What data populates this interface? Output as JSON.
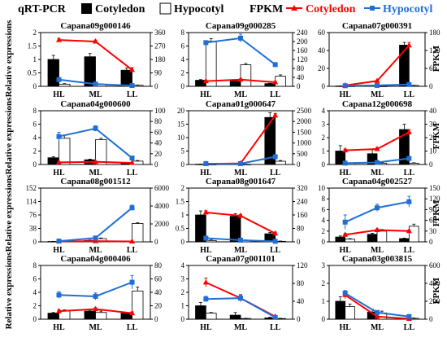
{
  "legend": {
    "qrt_label": "qRT-PCR",
    "cotyledon_label": "Cotyledon",
    "hypocotyl_label": "Hypocotyl",
    "fpkm_label": "FPKM",
    "bar_colors": {
      "cotyledon": "#000000",
      "hypocotyl": "#ffffff"
    },
    "line_colors": {
      "cotyledon": "#ff0000",
      "hypocotyl": "#1f6fd6"
    }
  },
  "left_axis_label": "Relative expressions",
  "right_axis_label": "FPKM",
  "chart_data": [
    {
      "type": "bar+line",
      "title": "Capana09g000146",
      "categories": [
        "HL",
        "ML",
        "LL"
      ],
      "left_ticks": [
        "0",
        "0.5",
        "1",
        "1.5",
        "2"
      ],
      "ylim_left": [
        0,
        2
      ],
      "right_ticks": [
        "0",
        "90",
        "180",
        "270",
        "360"
      ],
      "ylim_right": [
        0,
        360
      ],
      "bars": [
        {
          "name": "Cotyledon",
          "values": [
            1.0,
            1.1,
            0.6
          ],
          "errors": [
            0.15,
            0.12,
            0.08
          ]
        },
        {
          "name": "Hypocotyl",
          "values": [
            0.08,
            0.06,
            0.04
          ],
          "errors": [
            0.02,
            0.02,
            0.01
          ]
        }
      ],
      "lines": [
        {
          "name": "Cotyledon",
          "values": [
            310,
            300,
            110
          ],
          "errors": [
            10,
            10,
            15
          ]
        },
        {
          "name": "Hypocotyl",
          "values": [
            45,
            15,
            5
          ],
          "errors": [
            5,
            4,
            2
          ]
        }
      ]
    },
    {
      "type": "bar+line",
      "title": "Capana09g000285",
      "categories": [
        "HL",
        "ML",
        "LL"
      ],
      "left_ticks": [
        "0",
        "2",
        "4",
        "6",
        "8"
      ],
      "ylim_left": [
        0,
        8
      ],
      "right_ticks": [
        "0",
        "40",
        "80",
        "120",
        "160",
        "200",
        "240"
      ],
      "ylim_right": [
        0,
        240
      ],
      "bars": [
        {
          "name": "Cotyledon",
          "values": [
            0.9,
            0.8,
            0.4
          ],
          "errors": [
            0.1,
            0.1,
            0.05
          ]
        },
        {
          "name": "Hypocotyl",
          "values": [
            6.7,
            3.2,
            1.5
          ],
          "errors": [
            0.4,
            0.2,
            0.2
          ]
        }
      ],
      "lines": [
        {
          "name": "Cotyledon",
          "values": [
            23,
            30,
            18
          ],
          "errors": [
            3,
            3,
            3
          ]
        },
        {
          "name": "Hypocotyl",
          "values": [
            195,
            215,
            97
          ],
          "errors": [
            8,
            18,
            8
          ]
        }
      ]
    },
    {
      "type": "bar+line",
      "title": "Capana07g000391",
      "categories": [
        "HL",
        "ML",
        "LL"
      ],
      "left_ticks": [
        "0",
        "20",
        "40",
        "60"
      ],
      "ylim_left": [
        0,
        60
      ],
      "right_ticks": [
        "0",
        "60",
        "120",
        "180"
      ],
      "ylim_right": [
        0,
        180
      ],
      "bars": [
        {
          "name": "Cotyledon",
          "values": [
            0.3,
            0.8,
            46
          ],
          "errors": [
            0.1,
            0.2,
            3
          ]
        },
        {
          "name": "Hypocotyl",
          "values": [
            0.2,
            0.2,
            1.0
          ],
          "errors": [
            0.05,
            0.05,
            0.2
          ]
        }
      ],
      "lines": [
        {
          "name": "Cotyledon",
          "values": [
            3,
            18,
            137
          ],
          "errors": [
            1,
            2,
            10
          ]
        },
        {
          "name": "Hypocotyl",
          "values": [
            2,
            3,
            6
          ],
          "errors": [
            1,
            1,
            1
          ]
        }
      ]
    },
    {
      "type": "bar+line",
      "title": "Capana04g000600",
      "categories": [
        "HL",
        "ML",
        "LL"
      ],
      "left_ticks": [
        "0",
        "2",
        "4",
        "6",
        "8"
      ],
      "ylim_left": [
        0,
        8
      ],
      "right_ticks": [
        "0",
        "20",
        "40",
        "60",
        "80",
        "100"
      ],
      "ylim_right": [
        0,
        100
      ],
      "bars": [
        {
          "name": "Cotyledon",
          "values": [
            1.0,
            0.7,
            0.2
          ],
          "errors": [
            0.15,
            0.1,
            0.05
          ]
        },
        {
          "name": "Hypocotyl",
          "values": [
            3.9,
            3.7,
            0.5
          ],
          "errors": [
            0.5,
            0.2,
            0.1
          ]
        }
      ],
      "lines": [
        {
          "name": "Cotyledon",
          "values": [
            4,
            5,
            3
          ],
          "errors": [
            1,
            1,
            1
          ]
        },
        {
          "name": "Hypocotyl",
          "values": [
            52,
            67,
            12
          ],
          "errors": [
            8,
            5,
            2
          ]
        }
      ]
    },
    {
      "type": "bar+line",
      "title": "Capana01g000647",
      "categories": [
        "HL",
        "ML",
        "LL"
      ],
      "left_ticks": [
        "0",
        "5",
        "10",
        "15",
        "20"
      ],
      "ylim_left": [
        0,
        20
      ],
      "right_ticks": [
        "0",
        "500",
        "1000",
        "1500",
        "2000",
        "2500"
      ],
      "ylim_right": [
        0,
        2500
      ],
      "bars": [
        {
          "name": "Cotyledon",
          "values": [
            0.1,
            0.15,
            17.5
          ],
          "errors": [
            0.05,
            0.05,
            1.8
          ]
        },
        {
          "name": "Hypocotyl",
          "values": [
            0.05,
            0.05,
            1.2
          ],
          "errors": [
            0.02,
            0.02,
            0.3
          ]
        }
      ],
      "lines": [
        {
          "name": "Cotyledon",
          "values": [
            30,
            50,
            2280
          ],
          "errors": [
            5,
            10,
            90
          ]
        },
        {
          "name": "Hypocotyl",
          "values": [
            40,
            40,
            360
          ],
          "errors": [
            5,
            5,
            40
          ]
        }
      ]
    },
    {
      "type": "bar+line",
      "title": "Capana12g000698",
      "categories": [
        "HL",
        "ML",
        "LL"
      ],
      "left_ticks": [
        "0",
        "1",
        "2",
        "3",
        "4"
      ],
      "ylim_left": [
        0,
        4
      ],
      "right_ticks": [
        "0",
        "10",
        "20",
        "30",
        "40"
      ],
      "ylim_right": [
        0,
        40
      ],
      "bars": [
        {
          "name": "Cotyledon",
          "values": [
            1.0,
            0.8,
            2.6
          ],
          "errors": [
            0.4,
            0.3,
            0.4
          ]
        },
        {
          "name": "Hypocotyl",
          "values": [
            0.1,
            0.1,
            0.1
          ],
          "errors": [
            0.03,
            0.03,
            0.03
          ]
        }
      ],
      "lines": [
        {
          "name": "Cotyledon",
          "values": [
            10.5,
            11.5,
            24
          ],
          "errors": [
            1,
            1,
            2
          ]
        },
        {
          "name": "Hypocotyl",
          "values": [
            1,
            1.5,
            4.5
          ],
          "errors": [
            0.5,
            0.5,
            1
          ]
        }
      ]
    },
    {
      "type": "bar+line",
      "title": "Capana08g001512",
      "categories": [
        "HL",
        "ML",
        "LL"
      ],
      "left_ticks": [
        "0",
        "38",
        "76",
        "114",
        "152"
      ],
      "ylim_left": [
        0,
        152
      ],
      "right_ticks": [
        "0",
        "2000",
        "4000",
        "6000"
      ],
      "ylim_right": [
        0,
        6000
      ],
      "bars": [
        {
          "name": "Cotyledon",
          "values": [
            1,
            4,
            1
          ],
          "errors": [
            0.5,
            1,
            0.5
          ]
        },
        {
          "name": "Hypocotyl",
          "values": [
            1,
            9,
            52
          ],
          "errors": [
            0.5,
            2,
            2
          ]
        }
      ],
      "lines": [
        {
          "name": "Cotyledon",
          "values": [
            40,
            80,
            40
          ],
          "errors": [
            10,
            15,
            10
          ]
        },
        {
          "name": "Hypocotyl",
          "values": [
            80,
            430,
            3800
          ],
          "errors": [
            20,
            60,
            300
          ]
        }
      ]
    },
    {
      "type": "bar+line",
      "title": "Capana08g001647",
      "categories": [
        "HL",
        "ML",
        "LL"
      ],
      "left_ticks": [
        "0",
        "0.5",
        "1",
        "1.5",
        "2"
      ],
      "ylim_left": [
        0,
        2
      ],
      "right_ticks": [
        "0",
        "80",
        "160",
        "240",
        "320"
      ],
      "ylim_right": [
        0,
        320
      ],
      "bars": [
        {
          "name": "Cotyledon",
          "values": [
            1.0,
            0.95,
            0.3
          ],
          "errors": [
            0.15,
            0.1,
            0.05
          ]
        },
        {
          "name": "Hypocotyl",
          "values": [
            0.05,
            0.05,
            0.02
          ],
          "errors": [
            0.02,
            0.02,
            0.01
          ]
        }
      ],
      "lines": [
        {
          "name": "Cotyledon",
          "values": [
            175,
            155,
            50
          ],
          "errors": [
            10,
            8,
            8
          ]
        },
        {
          "name": "Hypocotyl",
          "values": [
            22,
            10,
            3
          ],
          "errors": [
            3,
            2,
            1
          ]
        }
      ]
    },
    {
      "type": "bar+line",
      "title": "Capana04g002527",
      "categories": [
        "HL",
        "ML",
        "LL"
      ],
      "left_ticks": [
        "0",
        "2",
        "4",
        "6",
        "8",
        "10"
      ],
      "ylim_left": [
        0,
        10
      ],
      "right_ticks": [
        "0",
        "30",
        "60",
        "90",
        "120",
        "150"
      ],
      "ylim_right": [
        0,
        150
      ],
      "bars": [
        {
          "name": "Cotyledon",
          "values": [
            0.9,
            1.4,
            0.6
          ],
          "errors": [
            0.2,
            0.2,
            0.1
          ]
        },
        {
          "name": "Hypocotyl",
          "values": [
            0.5,
            2.0,
            2.9
          ],
          "errors": [
            0.1,
            0.3,
            0.4
          ]
        }
      ],
      "lines": [
        {
          "name": "Cotyledon",
          "values": [
            20,
            33,
            30
          ],
          "errors": [
            3,
            3,
            3
          ]
        },
        {
          "name": "Hypocotyl",
          "values": [
            55,
            95,
            112
          ],
          "errors": [
            20,
            10,
            15
          ]
        }
      ]
    },
    {
      "type": "bar+line",
      "title": "Capana04g000406",
      "categories": [
        "HL",
        "ML",
        "LL"
      ],
      "left_ticks": [
        "0",
        "2",
        "4",
        "6",
        "8"
      ],
      "ylim_left": [
        0,
        8
      ],
      "right_ticks": [
        "0",
        "20",
        "40",
        "60",
        "80"
      ],
      "ylim_right": [
        0,
        80
      ],
      "bars": [
        {
          "name": "Cotyledon",
          "values": [
            0.9,
            1.2,
            0.9
          ],
          "errors": [
            0.1,
            0.15,
            0.1
          ]
        },
        {
          "name": "Hypocotyl",
          "values": [
            1.2,
            1.0,
            4.2
          ],
          "errors": [
            0.2,
            0.2,
            0.6
          ]
        }
      ],
      "lines": [
        {
          "name": "Cotyledon",
          "values": [
            12,
            15,
            9
          ],
          "errors": [
            2,
            2,
            2
          ]
        },
        {
          "name": "Hypocotyl",
          "values": [
            36,
            34,
            55
          ],
          "errors": [
            5,
            5,
            10
          ]
        }
      ]
    },
    {
      "type": "bar+line",
      "title": "Capana07g001101",
      "categories": [
        "HL",
        "ML",
        "LL"
      ],
      "left_ticks": [
        "0",
        "1",
        "2",
        "3",
        "4"
      ],
      "ylim_left": [
        0,
        4
      ],
      "right_ticks": [
        "0",
        "40",
        "80",
        "120"
      ],
      "ylim_right": [
        0,
        120
      ],
      "bars": [
        {
          "name": "Cotyledon",
          "values": [
            1.0,
            0.3,
            0.1
          ],
          "errors": [
            0.25,
            0.2,
            0.05
          ]
        },
        {
          "name": "Hypocotyl",
          "values": [
            0.45,
            0.05,
            0.05
          ],
          "errors": [
            0.05,
            0.02,
            0.02
          ]
        }
      ],
      "lines": [
        {
          "name": "Cotyledon",
          "values": [
            82,
            47,
            6
          ],
          "errors": [
            10,
            8,
            2
          ]
        },
        {
          "name": "Hypocotyl",
          "values": [
            45,
            47,
            4
          ],
          "errors": [
            6,
            6,
            2
          ]
        }
      ]
    },
    {
      "type": "bar+line",
      "title": "Capana03g003815",
      "categories": [
        "HL",
        "ML",
        "LL"
      ],
      "left_ticks": [
        "0",
        "1",
        "2",
        "3"
      ],
      "ylim_left": [
        0,
        3
      ],
      "right_ticks": [
        "0",
        "200",
        "400",
        "600"
      ],
      "ylim_right": [
        0,
        600
      ],
      "bars": [
        {
          "name": "Cotyledon",
          "values": [
            1.0,
            0.4,
            0.05
          ],
          "errors": [
            0.25,
            0.15,
            0.02
          ]
        },
        {
          "name": "Hypocotyl",
          "values": [
            0.7,
            0.35,
            0.05
          ],
          "errors": [
            0.15,
            0.1,
            0.02
          ]
        }
      ],
      "lines": [
        {
          "name": "Cotyledon",
          "values": [
            270,
            30,
            5
          ],
          "errors": [
            40,
            10,
            2
          ]
        },
        {
          "name": "Hypocotyl",
          "values": [
            290,
            75,
            30
          ],
          "errors": [
            30,
            15,
            8
          ]
        }
      ]
    }
  ]
}
